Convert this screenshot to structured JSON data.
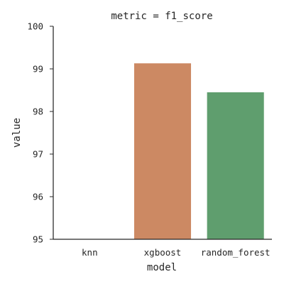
{
  "chart_data": {
    "type": "bar",
    "title": "metric = f1_score",
    "xlabel": "model",
    "ylabel": "value",
    "categories": [
      "knn",
      "xgboost",
      "random_forest"
    ],
    "values": [
      95.0,
      99.13,
      98.45
    ],
    "colors": [
      "#4c72b0",
      "#cc8963",
      "#5f9e6e"
    ],
    "ylim": [
      95,
      100
    ],
    "yticks": [
      95,
      96,
      97,
      98,
      99,
      100
    ],
    "grid": false,
    "legend": "none"
  }
}
